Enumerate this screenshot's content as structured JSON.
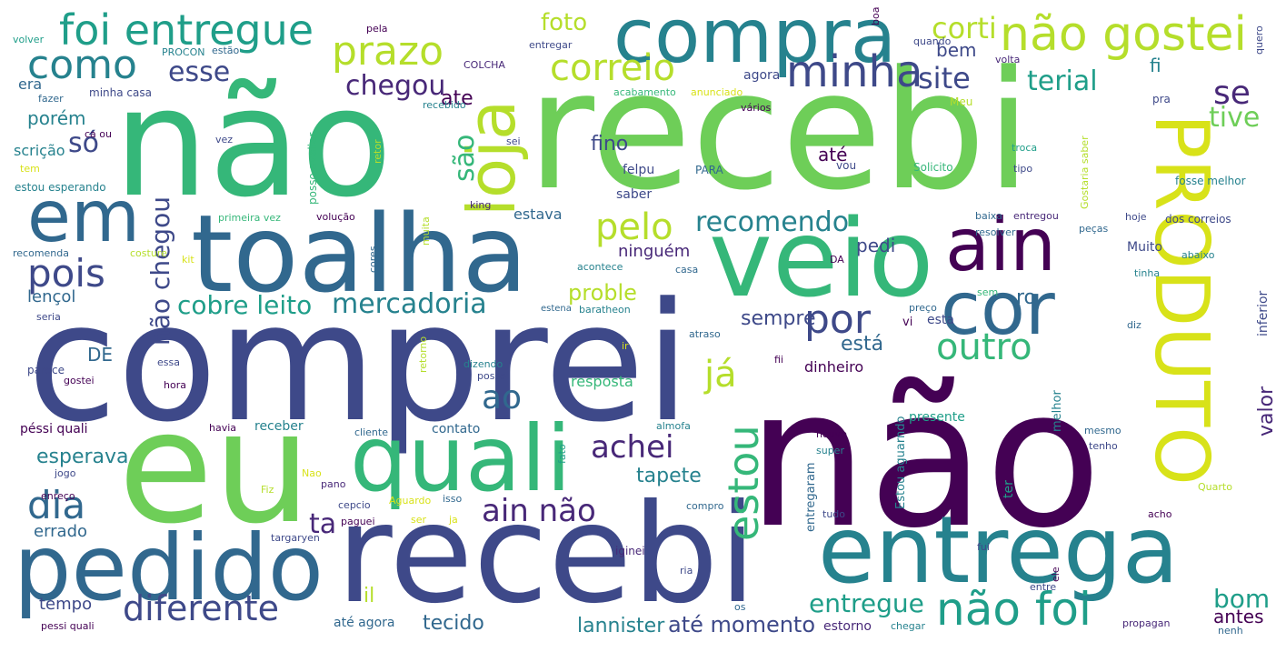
{
  "palette": {
    "background": "#ffffff",
    "colors": [
      "#440154",
      "#482878",
      "#3e4989",
      "#31688e",
      "#26828e",
      "#1f9e89",
      "#35b779",
      "#6ece58",
      "#b5de2b",
      "#d8e219"
    ]
  },
  "words": [
    {
      "text": "não",
      "color": "#440154"
    },
    {
      "text": "comprei",
      "color": "#3e4989"
    },
    {
      "text": "recebi",
      "color": "#6ece58"
    },
    {
      "text": "não",
      "color": "#35b779"
    },
    {
      "text": "recebi",
      "color": "#3e4989"
    },
    {
      "text": "eu",
      "color": "#6ece58"
    },
    {
      "text": "toalha",
      "color": "#31688e"
    },
    {
      "text": "veio",
      "color": "#35b779"
    },
    {
      "text": "quali",
      "color": "#35b779"
    },
    {
      "text": "entrega",
      "color": "#26828e"
    },
    {
      "text": "pedido",
      "color": "#31688e"
    },
    {
      "text": "compra",
      "color": "#26828e"
    },
    {
      "text": "PRODUTO",
      "color": "#d8e219"
    },
    {
      "text": "em",
      "color": "#31688e"
    },
    {
      "text": "cor",
      "color": "#31688e"
    },
    {
      "text": "loja",
      "color": "#b5de2b"
    },
    {
      "text": "ain",
      "color": "#440154"
    },
    {
      "text": "foi entregue",
      "color": "#1f9e89"
    },
    {
      "text": "não gostei",
      "color": "#b5de2b"
    },
    {
      "text": "não foi",
      "color": "#1f9e89"
    },
    {
      "text": "estou",
      "color": "#35b779"
    },
    {
      "text": "minha",
      "color": "#3e4989"
    },
    {
      "text": "correio",
      "color": "#b5de2b"
    },
    {
      "text": "prazo",
      "color": "#b5de2b"
    },
    {
      "text": "como",
      "color": "#26828e"
    },
    {
      "text": "dia",
      "color": "#31688e"
    },
    {
      "text": "pois",
      "color": "#3e4989"
    },
    {
      "text": "por",
      "color": "#3e4989"
    },
    {
      "text": "outro",
      "color": "#35b779"
    },
    {
      "text": "ain não",
      "color": "#482878"
    },
    {
      "text": "diferente",
      "color": "#3e4989"
    },
    {
      "text": "achei",
      "color": "#482878"
    },
    {
      "text": "ao",
      "color": "#31688e"
    },
    {
      "text": "pelo",
      "color": "#b5de2b"
    },
    {
      "text": "já",
      "color": "#b5de2b"
    },
    {
      "text": "se",
      "color": "#482878"
    },
    {
      "text": "site",
      "color": "#3e4989"
    },
    {
      "text": "recomendo",
      "color": "#26828e"
    },
    {
      "text": "mercadoria",
      "color": "#26828e"
    },
    {
      "text": "cobre leito",
      "color": "#1f9e89"
    },
    {
      "text": "não chegou",
      "color": "#3e4989"
    },
    {
      "text": "terial",
      "color": "#1f9e89"
    },
    {
      "text": "corti",
      "color": "#b5de2b"
    },
    {
      "text": "tive",
      "color": "#6ece58"
    },
    {
      "text": "bom",
      "color": "#1f9e89"
    },
    {
      "text": "entregue",
      "color": "#1f9e89"
    },
    {
      "text": "até momento",
      "color": "#3e4989"
    },
    {
      "text": "lannister",
      "color": "#26828e"
    },
    {
      "text": "tecido",
      "color": "#31688e"
    },
    {
      "text": "ta",
      "color": "#482878"
    },
    {
      "text": "esse",
      "color": "#3e4989"
    },
    {
      "text": "chegou",
      "color": "#482878"
    },
    {
      "text": "são",
      "color": "#35b779"
    },
    {
      "text": "só",
      "color": "#3e4989"
    },
    {
      "text": "foto",
      "color": "#b5de2b"
    },
    {
      "text": "ate",
      "color": "#440154"
    },
    {
      "text": "fino",
      "color": "#3e4989"
    },
    {
      "text": "até",
      "color": "#440154"
    },
    {
      "text": "sempre",
      "color": "#3e4989"
    },
    {
      "text": "está",
      "color": "#31688e"
    },
    {
      "text": "proble",
      "color": "#b5de2b"
    },
    {
      "text": "esperava",
      "color": "#26828e"
    },
    {
      "text": "tapete",
      "color": "#26828e"
    },
    {
      "text": "il",
      "color": "#b5de2b"
    },
    {
      "text": "valor",
      "color": "#482878"
    },
    {
      "text": "antes",
      "color": "#440154"
    },
    {
      "text": "ro",
      "color": "#31688e"
    },
    {
      "text": "pedi",
      "color": "#3e4989"
    },
    {
      "text": "bem",
      "color": "#3e4989"
    },
    {
      "text": "fi",
      "color": "#26828e"
    },
    {
      "text": "DE",
      "color": "#31688e"
    },
    {
      "text": "porém",
      "color": "#26828e"
    },
    {
      "text": "lençol",
      "color": "#31688e"
    },
    {
      "text": "errado",
      "color": "#31688e"
    },
    {
      "text": "tempo",
      "color": "#3e4989"
    },
    {
      "text": "dinheiro",
      "color": "#440154"
    },
    {
      "text": "resposta",
      "color": "#35b779"
    },
    {
      "text": "ninguém",
      "color": "#482878"
    },
    {
      "text": "estava",
      "color": "#31688e"
    },
    {
      "text": "era",
      "color": "#31688e"
    },
    {
      "text": "scrição",
      "color": "#26828e"
    },
    {
      "text": "agora",
      "color": "#3e4989"
    },
    {
      "text": "felpu",
      "color": "#3e4989"
    },
    {
      "text": "saber",
      "color": "#3e4989"
    },
    {
      "text": "contato",
      "color": "#31688e"
    },
    {
      "text": "receber",
      "color": "#26828e"
    },
    {
      "text": "presente",
      "color": "#1f9e89"
    },
    {
      "text": "ter",
      "color": "#1f9e89"
    },
    {
      "text": "péssi quali",
      "color": "#440154"
    },
    {
      "text": "até agora",
      "color": "#31688e"
    },
    {
      "text": "estorno",
      "color": "#482878"
    },
    {
      "text": "inferior",
      "color": "#3e4989"
    },
    {
      "text": "Muito",
      "color": "#3e4989"
    },
    {
      "text": "Estou aguarndo",
      "color": "#26828e"
    },
    {
      "text": "vi",
      "color": "#440154"
    },
    {
      "text": "esta",
      "color": "#3e4989"
    },
    {
      "text": "melhor",
      "color": "#26828e"
    },
    {
      "text": "entregaram",
      "color": "#31688e"
    },
    {
      "text": "volver",
      "color": "#1f9e89"
    },
    {
      "text": "pela",
      "color": "#440154"
    },
    {
      "text": "estão",
      "color": "#31688e"
    },
    {
      "text": "PROCON",
      "color": "#26828e"
    },
    {
      "text": "COLCHA",
      "color": "#482878"
    },
    {
      "text": "entregar",
      "color": "#3e4989"
    },
    {
      "text": "boa",
      "color": "#440154"
    },
    {
      "text": "quando",
      "color": "#3e4989"
    },
    {
      "text": "volta",
      "color": "#482878"
    },
    {
      "text": "quero",
      "color": "#3e4989"
    },
    {
      "text": "fazer",
      "color": "#31688e"
    },
    {
      "text": "minha casa",
      "color": "#3e4989"
    },
    {
      "text": "acabamento",
      "color": "#35b779"
    },
    {
      "text": "anunciado",
      "color": "#d8e219"
    },
    {
      "text": "recebido",
      "color": "#26828e"
    },
    {
      "text": "Meu",
      "color": "#b5de2b"
    },
    {
      "text": "pra",
      "color": "#3e4989"
    },
    {
      "text": "vários",
      "color": "#440154"
    },
    {
      "text": "ca ou",
      "color": "#440154"
    },
    {
      "text": "vez",
      "color": "#3e4989"
    },
    {
      "text": "sei",
      "color": "#3e4989"
    },
    {
      "text": "retor",
      "color": "#b5de2b"
    },
    {
      "text": "troca",
      "color": "#1f9e89"
    },
    {
      "text": "tipo",
      "color": "#3e4989"
    },
    {
      "text": "tem",
      "color": "#d8e219"
    },
    {
      "text": "estou esperando",
      "color": "#26828e"
    },
    {
      "text": "posso avaliar",
      "color": "#35b779"
    },
    {
      "text": "PARA",
      "color": "#31688e"
    },
    {
      "text": "vou",
      "color": "#3e4989"
    },
    {
      "text": "Solicito",
      "color": "#35b779"
    },
    {
      "text": "Gostaria saber",
      "color": "#b5de2b"
    },
    {
      "text": "fosse melhor",
      "color": "#26828e"
    },
    {
      "text": "primeira vez",
      "color": "#35b779"
    },
    {
      "text": "volução",
      "color": "#440154"
    },
    {
      "text": "king",
      "color": "#482878"
    },
    {
      "text": "baixa",
      "color": "#31688e"
    },
    {
      "text": "entregou",
      "color": "#482878"
    },
    {
      "text": "peças",
      "color": "#31688e"
    },
    {
      "text": "hoje",
      "color": "#3e4989"
    },
    {
      "text": "dos correios",
      "color": "#3e4989"
    },
    {
      "text": "recomenda",
      "color": "#31688e"
    },
    {
      "text": "costure",
      "color": "#b5de2b"
    },
    {
      "text": "kit",
      "color": "#d8e219"
    },
    {
      "text": "cores",
      "color": "#31688e"
    },
    {
      "text": "muita",
      "color": "#b5de2b"
    },
    {
      "text": "acontece",
      "color": "#26828e"
    },
    {
      "text": "casa",
      "color": "#31688e"
    },
    {
      "text": "resolver",
      "color": "#31688e"
    },
    {
      "text": "abaixo",
      "color": "#26828e"
    },
    {
      "text": "tinha",
      "color": "#26828e"
    },
    {
      "text": "DA",
      "color": "#440154"
    },
    {
      "text": "sem",
      "color": "#35b779"
    },
    {
      "text": "seria",
      "color": "#3e4989"
    },
    {
      "text": "estena",
      "color": "#31688e"
    },
    {
      "text": "baratheon",
      "color": "#26828e"
    },
    {
      "text": "preço",
      "color": "#31688e"
    },
    {
      "text": "diz",
      "color": "#31688e"
    },
    {
      "text": "retorno",
      "color": "#b5de2b"
    },
    {
      "text": "atraso",
      "color": "#31688e"
    },
    {
      "text": "ir",
      "color": "#d8e219"
    },
    {
      "text": "parece",
      "color": "#3e4989"
    },
    {
      "text": "essa",
      "color": "#3e4989"
    },
    {
      "text": "dizendo",
      "color": "#26828e"
    },
    {
      "text": "posso",
      "color": "#3e4989"
    },
    {
      "text": "fii",
      "color": "#440154"
    },
    {
      "text": "gostei",
      "color": "#440154"
    },
    {
      "text": "hora",
      "color": "#440154"
    },
    {
      "text": "havia",
      "color": "#440154"
    },
    {
      "text": "cliente",
      "color": "#31688e"
    },
    {
      "text": "almofa",
      "color": "#26828e"
    },
    {
      "text": "houve",
      "color": "#440154"
    },
    {
      "text": "super",
      "color": "#26828e"
    },
    {
      "text": "mesmo",
      "color": "#31688e"
    },
    {
      "text": "tenho",
      "color": "#3e4989"
    },
    {
      "text": "fato",
      "color": "#1f9e89"
    },
    {
      "text": "jogo",
      "color": "#3e4989"
    },
    {
      "text": "Nao",
      "color": "#d8e219"
    },
    {
      "text": "pano",
      "color": "#482878"
    },
    {
      "text": "Quarto",
      "color": "#b5de2b"
    },
    {
      "text": "enreço",
      "color": "#440154"
    },
    {
      "text": "Fiz",
      "color": "#b5de2b"
    },
    {
      "text": "cepcio",
      "color": "#3e4989"
    },
    {
      "text": "Aguardo",
      "color": "#d8e219"
    },
    {
      "text": "isso",
      "color": "#31688e"
    },
    {
      "text": "compro",
      "color": "#31688e"
    },
    {
      "text": "tudo",
      "color": "#3e4989"
    },
    {
      "text": "acho",
      "color": "#440154"
    },
    {
      "text": "paguei",
      "color": "#440154"
    },
    {
      "text": "ser",
      "color": "#d8e219"
    },
    {
      "text": "ja",
      "color": "#d8e219"
    },
    {
      "text": "targaryen",
      "color": "#3e4989"
    },
    {
      "text": "fui",
      "color": "#3e4989"
    },
    {
      "text": "iginei",
      "color": "#482878"
    },
    {
      "text": "ria",
      "color": "#3e4989"
    },
    {
      "text": "os",
      "color": "#31688e"
    },
    {
      "text": "entre",
      "color": "#3e4989"
    },
    {
      "text": "ele",
      "color": "#440154"
    },
    {
      "text": "pessi quali",
      "color": "#440154"
    },
    {
      "text": "chegar",
      "color": "#26828e"
    },
    {
      "text": "propagan",
      "color": "#482878"
    },
    {
      "text": "nenh",
      "color": "#31688e"
    }
  ]
}
